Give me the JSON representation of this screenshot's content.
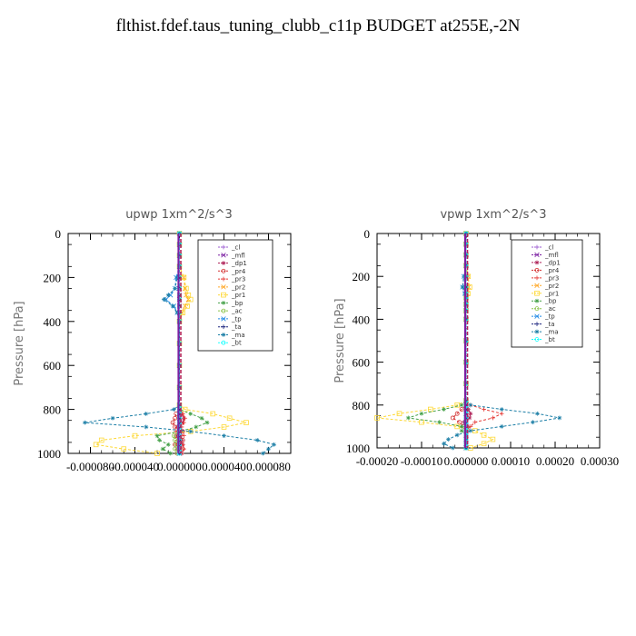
{
  "title": "flthist.fdef.taus_tuning_clubb_c11p  BUDGET at255E,-2N",
  "chart_data": [
    {
      "type": "line",
      "title": "upwp   1xm^2/s^3",
      "ylabel": "Pressure  [hPa]",
      "xlabel": "",
      "xlim": [
        -0.0001,
        0.0001
      ],
      "ylim": [
        1000,
        0
      ],
      "xticks": [
        -8e-05,
        -4e-05,
        0.0,
        4e-05,
        8e-05
      ],
      "xtick_labels": [
        "-0.000080",
        "-0.000040",
        "0.000000",
        "0.000040",
        "0.000080"
      ],
      "yticks": [
        0,
        200,
        400,
        600,
        800,
        1000
      ],
      "ytick_labels": [
        "0",
        "200",
        "400",
        "600",
        "800",
        "1000"
      ],
      "legend_position": "top-right",
      "pressure": [
        0,
        50,
        100,
        150,
        200,
        250,
        280,
        300,
        330,
        360,
        400,
        500,
        600,
        700,
        780,
        800,
        820,
        840,
        860,
        880,
        900,
        920,
        940,
        960,
        980,
        1000
      ],
      "series": [
        {
          "name": "_cl",
          "color": "#9b59d0",
          "marker": "+",
          "values": [
            0,
            0,
            0,
            0,
            0,
            0,
            0,
            0,
            0,
            0,
            0,
            0,
            0,
            0,
            0,
            0,
            0,
            0,
            0,
            0,
            0,
            0,
            0,
            0,
            0,
            0
          ]
        },
        {
          "name": "_mfl",
          "color": "#7b1fa2",
          "marker": "x",
          "values": [
            0,
            0,
            0,
            0,
            0,
            0,
            0,
            0,
            0,
            0,
            0,
            0,
            0,
            0,
            0,
            0,
            0,
            0,
            0,
            0,
            0,
            0,
            0,
            0,
            0,
            0
          ]
        },
        {
          "name": "_dp1",
          "color": "#b0245a",
          "marker": "*",
          "values": [
            0,
            0,
            0,
            0,
            0,
            0,
            0,
            0,
            0,
            0,
            0,
            0,
            0,
            0,
            0,
            0,
            2e-06,
            4e-06,
            3e-06,
            -2e-06,
            2e-06,
            -2e-06,
            2e-06,
            3e-06,
            -2e-06,
            2e-06
          ]
        },
        {
          "name": "_pr4",
          "color": "#d32f2f",
          "marker": "o",
          "values": [
            0,
            0,
            0,
            0,
            0,
            0,
            0,
            0,
            0,
            0,
            0,
            0,
            0,
            0,
            0,
            0,
            -3e-06,
            -4e-06,
            -6e-06,
            -4e-06,
            3e-06,
            -3e-06,
            3e-06,
            -4e-06,
            3e-06,
            -2e-06
          ]
        },
        {
          "name": "_pr3",
          "color": "#e53935",
          "marker": "+",
          "values": [
            0,
            0,
            0,
            0,
            0,
            0,
            0,
            0,
            0,
            0,
            0,
            0,
            0,
            0,
            0,
            0,
            3e-06,
            5e-06,
            4e-06,
            2e-06,
            -3e-06,
            4e-06,
            -2e-06,
            3e-06,
            4e-06,
            2e-06
          ]
        },
        {
          "name": "_pr2",
          "color": "#ffa726",
          "marker": "x",
          "values": [
            0,
            0,
            0,
            0,
            4e-06,
            5e-06,
            6e-06,
            8e-06,
            5e-06,
            2e-06,
            0,
            0,
            0,
            0,
            0,
            0,
            0,
            0,
            0,
            0,
            0,
            0,
            0,
            0,
            0,
            0
          ]
        },
        {
          "name": "_pr1",
          "color": "#fdd835",
          "marker": "s",
          "values": [
            0,
            0,
            0,
            0,
            4e-06,
            6e-06,
            8e-06,
            1e-05,
            7e-06,
            3e-06,
            0,
            0,
            0,
            0,
            0,
            5e-06,
            3e-05,
            4.5e-05,
            6e-05,
            4e-05,
            1e-05,
            -4e-05,
            -7e-05,
            -7.5e-05,
            -5e-05,
            -2e-05
          ]
        },
        {
          "name": "_bp",
          "color": "#43a047",
          "marker": "*",
          "values": [
            0,
            0,
            0,
            0,
            0,
            0,
            0,
            0,
            0,
            0,
            0,
            0,
            0,
            0,
            0,
            0,
            1e-05,
            2e-05,
            2.5e-05,
            1.5e-05,
            0,
            -2e-05,
            -1.8e-05,
            -1e-05,
            -1.5e-05,
            -8e-06
          ]
        },
        {
          "name": "_ac",
          "color": "#8bc34a",
          "marker": "o",
          "values": [
            0,
            0,
            0,
            0,
            0,
            0,
            0,
            0,
            0,
            0,
            0,
            0,
            0,
            0,
            0,
            0,
            0,
            0,
            0,
            0,
            0,
            -5e-06,
            -4e-06,
            -3e-06,
            -4e-06,
            -2e-06
          ]
        },
        {
          "name": "_tp",
          "color": "#1e88e5",
          "marker": "x",
          "values": [
            0,
            0,
            0,
            0,
            -3e-06,
            -4e-06,
            -8e-06,
            -1.2e-05,
            -5e-06,
            -2e-06,
            0,
            0,
            0,
            0,
            0,
            0,
            0,
            0,
            0,
            0,
            0,
            0,
            0,
            0,
            0,
            0
          ]
        },
        {
          "name": "_ta",
          "color": "#1a237e",
          "marker": "+",
          "values": [
            0,
            0,
            0,
            0,
            0,
            0,
            0,
            0,
            0,
            0,
            0,
            0,
            0,
            0,
            0,
            0,
            0,
            0,
            0,
            0,
            0,
            0,
            0,
            0,
            0,
            0
          ]
        },
        {
          "name": "_ma",
          "color": "#1b7ea6",
          "marker": "*",
          "values": [
            0,
            0,
            0,
            0,
            -2e-06,
            -4e-06,
            -1e-05,
            -1.4e-05,
            -6e-06,
            -2e-06,
            0,
            0,
            0,
            0,
            0,
            -5e-06,
            -3e-05,
            -6e-05,
            -8.5e-05,
            -3e-05,
            1e-05,
            4e-05,
            7e-05,
            8.5e-05,
            8e-05,
            7.5e-05
          ]
        },
        {
          "name": "_bt",
          "color": "#18ffff",
          "marker": "o",
          "values": [
            0,
            0,
            0,
            0,
            0,
            0,
            0,
            0,
            0,
            0,
            0,
            0,
            0,
            0,
            0,
            0,
            0,
            0,
            0,
            0,
            0,
            0,
            0,
            0,
            0,
            0
          ]
        }
      ]
    },
    {
      "type": "line",
      "title": "vpwp   1xm^2/s^3",
      "ylabel": "Pressure  [hPa]",
      "xlabel": "",
      "xlim": [
        -0.0002,
        0.0003
      ],
      "ylim": [
        1000,
        0
      ],
      "xticks": [
        -0.0002,
        -0.0001,
        0.0,
        0.0001,
        0.0002,
        0.0003
      ],
      "xtick_labels": [
        "-0.00020",
        "-0.00010",
        "0.000000",
        "0.00010",
        "0.00020",
        "0.00030"
      ],
      "yticks": [
        0,
        200,
        400,
        600,
        800,
        1000
      ],
      "ytick_labels": [
        "0",
        "200",
        "400",
        "600",
        "800",
        "1000"
      ],
      "legend_position": "top-right",
      "pressure": [
        0,
        50,
        100,
        150,
        200,
        250,
        280,
        300,
        330,
        360,
        400,
        500,
        600,
        700,
        780,
        800,
        820,
        840,
        860,
        880,
        900,
        920,
        940,
        960,
        980,
        1000
      ],
      "series": [
        {
          "name": "_cl",
          "color": "#9b59d0",
          "marker": "+",
          "values": [
            0,
            0,
            0,
            0,
            0,
            0,
            0,
            0,
            0,
            0,
            0,
            0,
            0,
            0,
            0,
            0,
            0,
            0,
            0,
            0,
            0,
            0,
            0,
            0,
            0,
            0
          ]
        },
        {
          "name": "_mfl",
          "color": "#7b1fa2",
          "marker": "x",
          "values": [
            0,
            0,
            0,
            0,
            0,
            0,
            0,
            0,
            0,
            0,
            0,
            0,
            0,
            0,
            0,
            0,
            0,
            0,
            0,
            0,
            0,
            0,
            0,
            0,
            0,
            0
          ]
        },
        {
          "name": "_dp1",
          "color": "#b0245a",
          "marker": "*",
          "values": [
            0,
            0,
            0,
            0,
            0,
            0,
            0,
            0,
            0,
            0,
            0,
            0,
            0,
            0,
            0,
            0,
            5e-06,
            1e-05,
            8e-06,
            -5e-06,
            4e-06,
            0,
            0,
            0,
            0,
            0
          ]
        },
        {
          "name": "_pr4",
          "color": "#d32f2f",
          "marker": "o",
          "values": [
            0,
            0,
            0,
            0,
            0,
            0,
            0,
            0,
            0,
            0,
            0,
            0,
            0,
            0,
            0,
            0,
            -1e-05,
            -2e-05,
            -3e-05,
            -1.5e-05,
            -5e-06,
            0,
            0,
            0,
            0,
            0
          ]
        },
        {
          "name": "_pr3",
          "color": "#e53935",
          "marker": "+",
          "values": [
            0,
            0,
            0,
            0,
            0,
            0,
            0,
            0,
            0,
            0,
            0,
            0,
            0,
            0,
            0,
            1e-05,
            4e-05,
            8e-05,
            6e-05,
            2e-05,
            1e-05,
            0,
            0,
            0,
            0,
            0
          ]
        },
        {
          "name": "_pr2",
          "color": "#ffa726",
          "marker": "x",
          "values": [
            0,
            0,
            0,
            0,
            5e-06,
            6e-06,
            3e-06,
            0,
            0,
            0,
            0,
            0,
            0,
            0,
            0,
            0,
            0,
            0,
            0,
            0,
            0,
            0,
            0,
            0,
            0,
            0
          ]
        },
        {
          "name": "_pr1",
          "color": "#fdd835",
          "marker": "s",
          "values": [
            0,
            0,
            0,
            0,
            4e-06,
            8e-06,
            4e-06,
            0,
            0,
            0,
            0,
            0,
            0,
            0,
            0,
            -2e-05,
            -8e-05,
            -0.00015,
            -0.0002,
            -0.0001,
            -2e-05,
            2e-05,
            4e-05,
            6e-05,
            4e-05,
            1e-05
          ]
        },
        {
          "name": "_bp",
          "color": "#43a047",
          "marker": "*",
          "values": [
            0,
            0,
            0,
            0,
            0,
            0,
            0,
            0,
            0,
            0,
            0,
            0,
            0,
            0,
            0,
            -1e-05,
            -5e-05,
            -0.0001,
            -0.00013,
            -6e-05,
            -1e-05,
            -1e-05,
            0,
            0,
            0,
            0
          ]
        },
        {
          "name": "_ac",
          "color": "#8bc34a",
          "marker": "o",
          "values": [
            0,
            0,
            0,
            0,
            0,
            0,
            0,
            0,
            0,
            0,
            0,
            0,
            0,
            0,
            0,
            0,
            0,
            0,
            0,
            0,
            0,
            0,
            0,
            0,
            0,
            0
          ]
        },
        {
          "name": "_tp",
          "color": "#1e88e5",
          "marker": "x",
          "values": [
            0,
            0,
            0,
            0,
            -5e-06,
            -8e-06,
            -3e-06,
            0,
            0,
            0,
            0,
            0,
            0,
            0,
            0,
            0,
            0,
            0,
            0,
            0,
            0,
            0,
            0,
            0,
            0,
            0
          ]
        },
        {
          "name": "_ta",
          "color": "#1a237e",
          "marker": "+",
          "values": [
            0,
            0,
            0,
            0,
            0,
            0,
            0,
            0,
            0,
            0,
            0,
            0,
            0,
            0,
            0,
            0,
            0,
            0,
            0,
            0,
            0,
            0,
            0,
            0,
            0,
            0
          ]
        },
        {
          "name": "_ma",
          "color": "#1b7ea6",
          "marker": "*",
          "values": [
            0,
            0,
            0,
            0,
            -5e-06,
            -8e-06,
            -3e-06,
            0,
            0,
            0,
            0,
            0,
            0,
            0,
            0,
            1e-05,
            8e-05,
            0.00016,
            0.00021,
            0.00015,
            8e-05,
            1e-05,
            -2e-05,
            -4e-05,
            -5e-05,
            -3e-05
          ]
        },
        {
          "name": "_bt",
          "color": "#18ffff",
          "marker": "o",
          "values": [
            0,
            0,
            0,
            0,
            0,
            0,
            0,
            0,
            0,
            0,
            0,
            0,
            0,
            0,
            0,
            0,
            0,
            0,
            0,
            0,
            0,
            0,
            0,
            0,
            0,
            0
          ]
        }
      ]
    }
  ]
}
